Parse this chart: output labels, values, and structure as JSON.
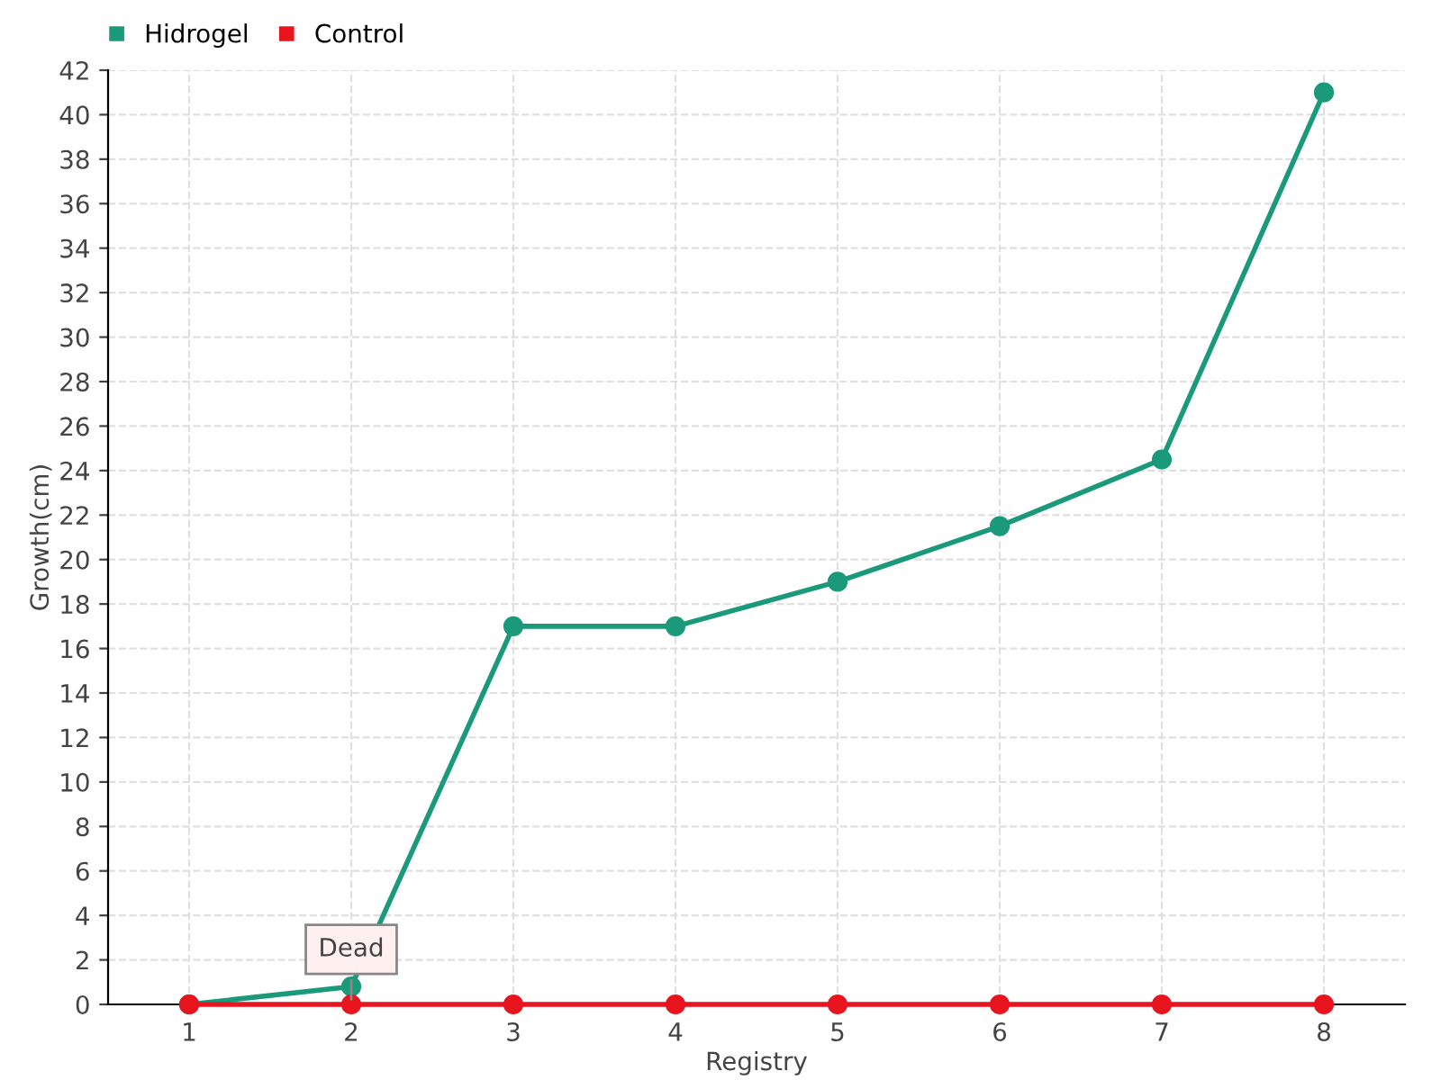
{
  "chart_data": {
    "type": "line",
    "xlabel": "Registry",
    "ylabel": "Growth(cm)",
    "categories": [
      "1",
      "2",
      "3",
      "4",
      "5",
      "6",
      "7",
      "8"
    ],
    "series": [
      {
        "name": "Hidrogel",
        "color": "#1a9a7a",
        "values": [
          0,
          0.8,
          17,
          17,
          19,
          21.5,
          24.5,
          41
        ]
      },
      {
        "name": "Control",
        "color": "#e8141e",
        "values": [
          0,
          0,
          0,
          0,
          0,
          0,
          0,
          0
        ]
      }
    ],
    "ylim": [
      0,
      42
    ],
    "yticks": [
      0,
      2,
      4,
      6,
      8,
      10,
      12,
      14,
      16,
      18,
      20,
      22,
      24,
      26,
      28,
      30,
      32,
      34,
      36,
      38,
      40,
      42
    ],
    "grid": true,
    "legend": "top left",
    "marker": "circle",
    "line_style": "solid",
    "annotations": [
      {
        "text": "Dead",
        "x": "2",
        "y": 0
      }
    ]
  }
}
